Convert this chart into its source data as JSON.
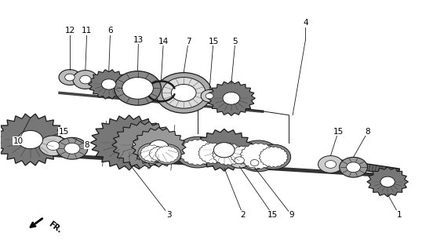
{
  "bg_color": "#ffffff",
  "fig_width": 5.52,
  "fig_height": 3.2,
  "dpi": 100,
  "line_color": "#1a1a1a",
  "gear_face": "#888888",
  "gear_dark": "#444444",
  "gear_light": "#cccccc",
  "shaft_color": "#555555"
}
